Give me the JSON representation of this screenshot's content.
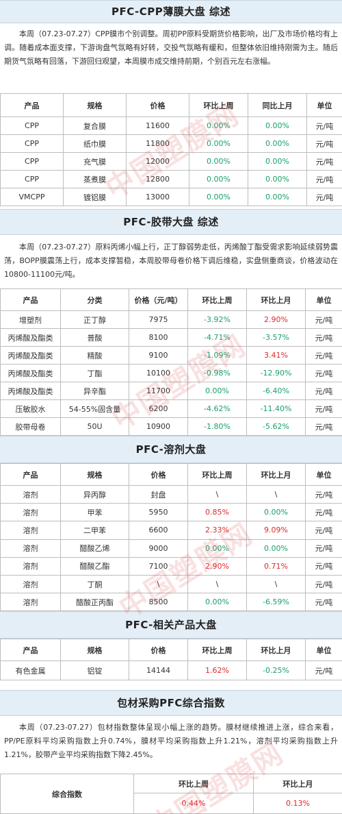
{
  "watermark": "中国塑膜网",
  "s1": {
    "title": "PFC-CPP薄膜大盘 综述",
    "para": "本周（07.23-07.27）CPP膜市个别调整。周初PP原料受期货价格影响，出厂及市场价格均有上调。随着成本面支撑，下游询盘气氛略有好转，交投气氛略有缓和，但整体依旧维持刚需为主。随后期货气氛略有回落，下游回归观望，本周膜市成交维持前期，个别百元左右涨幅。",
    "headers": [
      "产品",
      "规格",
      "价格",
      "环比上周",
      "同比上月",
      "单位"
    ],
    "rows": [
      [
        "CPP",
        "复合膜",
        "11600",
        "0.00%",
        "0.00%",
        "元/吨"
      ],
      [
        "CPP",
        "纸巾膜",
        "11800",
        "0.00%",
        "0.00%",
        "元/吨"
      ],
      [
        "CPP",
        "充气膜",
        "12000",
        "0.00%",
        "0.00%",
        "元/吨"
      ],
      [
        "CPP",
        "蒸煮膜",
        "12800",
        "0.00%",
        "0.00%",
        "元/吨"
      ],
      [
        "VMCPP",
        "镀铝膜",
        "13000",
        "0.00%",
        "0.00%",
        "元/吨"
      ]
    ]
  },
  "s2": {
    "title": "PFC-胶带大盘 综述",
    "para": "本周（07.23-07.27）原料丙烯小幅上行，正丁醇弱势走低，丙烯酸丁酯受需求影响延续弱势震荡，BOPP膜震荡上行，成本支撑暂稳，本周胶带母卷价格下调后维稳，实盘侧重商谈，价格波动在10800-11100元/吨。",
    "headers": [
      "产品",
      "分类",
      "价格（元/吨）",
      "环比上周",
      "环比上月",
      "单位"
    ],
    "rows": [
      [
        "增塑剂",
        "正丁醇",
        "7975",
        "-3.92%",
        "2.90%",
        "元/吨"
      ],
      [
        "丙烯酸及酯类",
        "普酸",
        "8100",
        "-4.71%",
        "-3.57%",
        "元/吨"
      ],
      [
        "丙烯酸及酯类",
        "精酸",
        "9100",
        "-1.09%",
        "3.41%",
        "元/吨"
      ],
      [
        "丙烯酸及酯类",
        "丁酯",
        "10100",
        "-0.98%",
        "-12.90%",
        "元/吨"
      ],
      [
        "丙烯酸及酯类",
        "异辛酯",
        "11700",
        "0.00%",
        "-6.40%",
        "元/吨"
      ],
      [
        "压敏胶水",
        "54-55%固含量",
        "6200",
        "-4.62%",
        "-11.40%",
        "元/吨"
      ],
      [
        "胶带母卷",
        "50U",
        "10900",
        "-1.80%",
        "-5.62%",
        "元/吨"
      ]
    ]
  },
  "s3": {
    "title": "PFC-溶剂大盘",
    "headers": [
      "产品",
      "规格",
      "价格",
      "环比上周",
      "环比上月",
      "单位"
    ],
    "rows": [
      [
        "溶剂",
        "异丙醇",
        "封盘",
        "\\",
        "\\",
        "元/吨"
      ],
      [
        "溶剂",
        "甲苯",
        "5950",
        "0.85%",
        "0.00%",
        "元/吨"
      ],
      [
        "溶剂",
        "二甲苯",
        "6600",
        "2.33%",
        "9.09%",
        "元/吨"
      ],
      [
        "溶剂",
        "醋酸乙烯",
        "9000",
        "0.00%",
        "0.00%",
        "元/吨"
      ],
      [
        "溶剂",
        "醋酸乙酯",
        "7100",
        "2.90%",
        "0.71%",
        "元/吨"
      ],
      [
        "溶剂",
        "丁酮",
        "\\",
        "\\",
        "\\",
        "元/吨"
      ],
      [
        "溶剂",
        "醋酸正丙酯",
        "8500",
        "0.00%",
        "-6.59%",
        "元/吨"
      ]
    ]
  },
  "s4": {
    "title": "PFC-相关产品大盘",
    "headers": [
      "产品",
      "规格",
      "价格",
      "环比上周",
      "环比上月",
      "单位"
    ],
    "rows": [
      [
        "有色金属",
        "铝锭",
        "14144",
        "1.62%",
        "-0.25%",
        "元/吨"
      ]
    ]
  },
  "s5": {
    "title": "包材采购PFC综合指数",
    "para": "本周（07.23-07.27）包材指数整体呈现小幅上涨的趋势。膜材继续推进上涨，综合来看，PP/PE原料平均采购指数上升0.74%，膜材平均采购指数上升1.21%，溶剂平均采购指数上升1.21%，胶带产业平均采购指数下降2.45%。",
    "label": "综合指数",
    "headers": [
      "环比上周",
      "环比上月"
    ],
    "values": [
      "0.44%",
      "0.13%"
    ]
  },
  "colors": {
    "positive": "#e0282c",
    "negative": "#18a068",
    "bar": "#e4eef6"
  }
}
